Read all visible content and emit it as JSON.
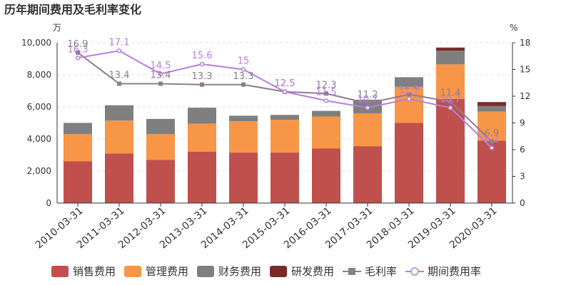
{
  "chart_data": {
    "type": "bar",
    "title": "历年期间费用及毛利率变化",
    "left_unit": "万",
    "right_unit": "%",
    "categories": [
      "2010-03-31",
      "2011-03-31",
      "2012-03-31",
      "2013-03-31",
      "2014-03-31",
      "2015-03-31",
      "2016-03-31",
      "2017-03-31",
      "2018-03-31",
      "2019-03-31",
      "2020-03-31"
    ],
    "ylim_left": [
      0,
      10000
    ],
    "yticks_left": [
      "0",
      "2,000",
      "4,000",
      "6,000",
      "8,000",
      "10,000"
    ],
    "ylim_right": [
      0,
      18
    ],
    "yticks_right": [
      "0",
      "3",
      "6",
      "9",
      "12",
      "15",
      "18"
    ],
    "stack_series": [
      {
        "name": "销售费用",
        "color": "#c0504d",
        "values": [
          2600,
          3100,
          2700,
          3200,
          3150,
          3150,
          3400,
          3550,
          5000,
          6500,
          3900
        ]
      },
      {
        "name": "管理费用",
        "color": "#f79646",
        "values": [
          1700,
          2050,
          1600,
          1750,
          1950,
          2050,
          2000,
          2050,
          2250,
          2150,
          1800
        ]
      },
      {
        "name": "财务费用",
        "color": "#7f7f7f",
        "values": [
          700,
          950,
          950,
          1000,
          350,
          300,
          350,
          850,
          600,
          850,
          350
        ]
      },
      {
        "name": "研发费用",
        "color": "#7b2a2a",
        "values": [
          0,
          0,
          0,
          0,
          0,
          0,
          0,
          0,
          0,
          200,
          250
        ]
      }
    ],
    "line_series": [
      {
        "name": "毛利率",
        "color": "#8e7c8e",
        "marker": "square",
        "values": [
          16.9,
          13.4,
          13.4,
          13.3,
          13.3,
          12.5,
          12.3,
          11.2,
          12.2,
          11.4,
          6.9
        ],
        "labels": [
          "16.9",
          "13.4",
          "13.4",
          "13.3",
          "13.3",
          "12.5",
          "12.3",
          "11.2",
          "12.2",
          "11.4",
          "6.9"
        ]
      },
      {
        "name": "期间费用率",
        "color": "#b57ee0",
        "marker": "circle",
        "values": [
          16.3,
          17.1,
          14.5,
          15.6,
          15,
          12.5,
          11.5,
          10.7,
          11.7,
          10.7,
          6.2
        ],
        "labels": [
          "16.3",
          "17.1",
          "14.5",
          "15.6",
          "15",
          "12.5",
          "11.5",
          "10.7",
          "11.7",
          "10.7",
          "6.2"
        ]
      }
    ],
    "grid": true,
    "legend_position": "bottom"
  }
}
